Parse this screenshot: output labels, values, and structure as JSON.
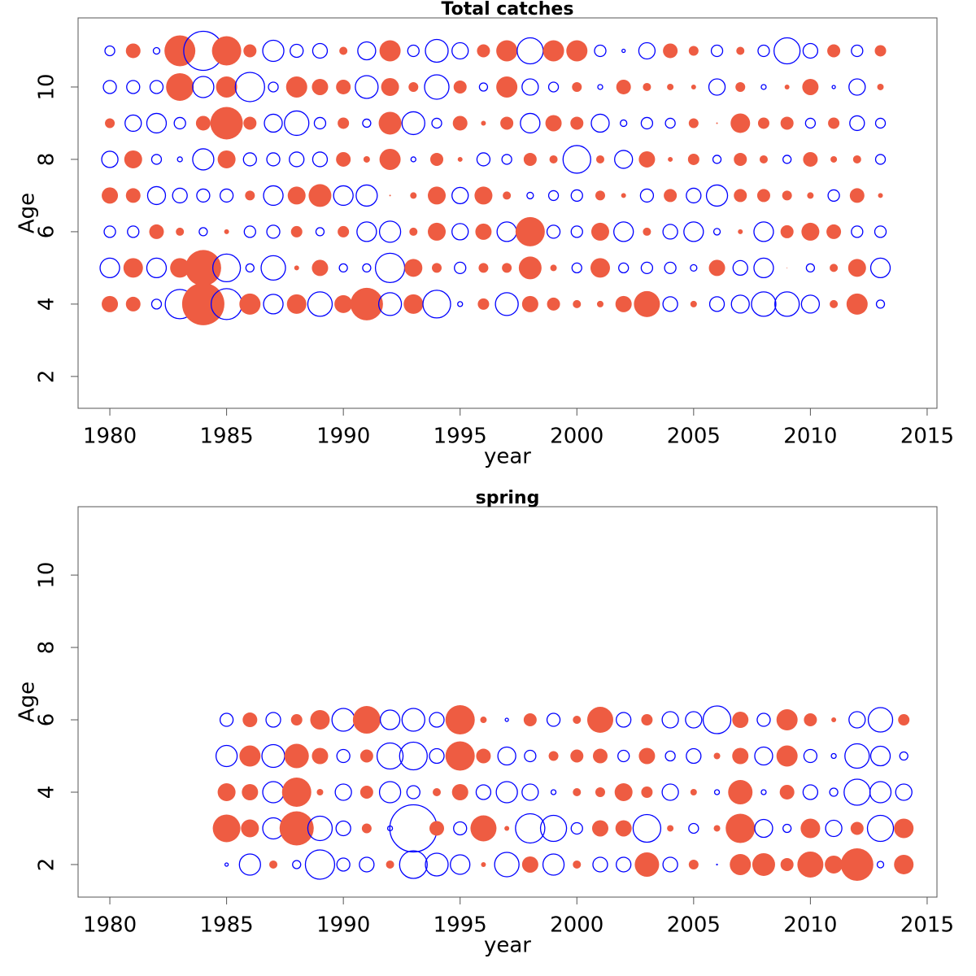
{
  "chart_data": [
    {
      "type": "bubble",
      "title": "Total catches",
      "xlabel": "year",
      "ylabel": "Age",
      "positive_color": "#ee5c42",
      "negative_color": "#0000ff",
      "xlim": [
        1978.64,
        2015.42
      ],
      "ylim": [
        1.12,
        11.91
      ],
      "xticks": [
        1980,
        1985,
        1990,
        1995,
        2000,
        2005,
        2010,
        2015
      ],
      "yticks": [
        2,
        4,
        6,
        8,
        10
      ],
      "x": [
        1980,
        1981,
        1982,
        1983,
        1984,
        1985,
        1986,
        1987,
        1988,
        1989,
        1990,
        1991,
        1992,
        1993,
        1994,
        1995,
        1996,
        1997,
        1998,
        1999,
        2000,
        2001,
        2002,
        2003,
        2004,
        2005,
        2006,
        2007,
        2008,
        2009,
        2010,
        2011,
        2012,
        2013
      ],
      "y": [
        11,
        10,
        9,
        8,
        7,
        6,
        5,
        4
      ],
      "values": [
        [
          -0.6,
          0.9,
          -0.4,
          1.9,
          -2.4,
          1.8,
          0.8,
          -1.3,
          -0.8,
          -0.9,
          0.5,
          -1.1,
          1.3,
          -0.7,
          -1.4,
          -1.0,
          0.8,
          1.3,
          -1.6,
          1.3,
          1.3,
          -0.7,
          -0.2,
          -1.0,
          0.9,
          0.6,
          -0.7,
          0.5,
          -0.7,
          -1.6,
          -0.9,
          0.8,
          -0.7,
          0.7
        ],
        [
          -0.8,
          -0.8,
          -0.8,
          1.7,
          -1.3,
          1.3,
          -1.8,
          -0.6,
          1.3,
          1.0,
          0.9,
          -1.4,
          1.1,
          0.6,
          -1.5,
          0.8,
          -0.5,
          1.3,
          -1.0,
          -0.6,
          0.6,
          -0.3,
          0.9,
          0.5,
          0.4,
          0.3,
          -1.0,
          0.6,
          -0.3,
          0.3,
          1.0,
          -0.2,
          -1.0,
          0.4
        ],
        [
          0.6,
          -1.0,
          -1.2,
          -0.7,
          0.9,
          2.0,
          0.8,
          -1.1,
          -1.5,
          -0.7,
          0.7,
          -0.5,
          1.4,
          -1.4,
          -0.6,
          0.9,
          0.3,
          0.8,
          -1.2,
          1.0,
          0.8,
          -1.1,
          -0.4,
          -0.7,
          -0.6,
          0.6,
          0.1,
          1.2,
          0.7,
          0.8,
          -0.6,
          0.7,
          -0.9,
          -0.6
        ],
        [
          -1.0,
          1.1,
          -0.6,
          -0.3,
          -1.3,
          1.1,
          -0.8,
          -0.8,
          -0.9,
          -0.9,
          0.9,
          0.4,
          1.3,
          -0.3,
          0.8,
          0.3,
          -0.8,
          -0.6,
          0.8,
          0.5,
          -1.7,
          0.5,
          -1.1,
          1.0,
          0.3,
          0.7,
          -0.5,
          0.8,
          0.5,
          -0.5,
          0.9,
          0.4,
          0.5,
          -0.6
        ],
        [
          1.0,
          0.9,
          -1.1,
          -0.9,
          -0.8,
          -0.8,
          0.6,
          -1.2,
          1.1,
          1.4,
          -1.2,
          -1.3,
          0.1,
          0.4,
          1.1,
          -1.0,
          1.1,
          0.5,
          -0.4,
          -0.6,
          -0.7,
          0.6,
          0.3,
          -0.8,
          0.8,
          -0.9,
          -1.3,
          0.8,
          0.8,
          0.6,
          0.4,
          -0.7,
          0.9,
          0.3
        ],
        [
          -0.7,
          -0.7,
          0.9,
          0.5,
          -0.5,
          0.3,
          -0.7,
          -0.8,
          0.7,
          -0.5,
          0.7,
          -1.2,
          -1.3,
          0.5,
          1.1,
          -1.0,
          1.0,
          -1.2,
          1.8,
          -0.8,
          -0.7,
          1.1,
          -1.2,
          0.5,
          -0.9,
          -1.2,
          -0.4,
          0.3,
          -1.2,
          0.8,
          1.1,
          0.9,
          -0.7,
          -0.7
        ],
        [
          -1.2,
          1.2,
          -1.2,
          1.2,
          2.2,
          -1.7,
          -0.5,
          -1.5,
          0.3,
          1.0,
          -0.5,
          -0.5,
          -1.8,
          1.1,
          0.6,
          -0.7,
          0.6,
          0.6,
          1.4,
          0.4,
          -0.6,
          1.2,
          -0.6,
          -0.7,
          -0.7,
          -0.4,
          1.0,
          -0.9,
          -1.2,
          0.05,
          -0.5,
          0.5,
          1.1,
          -1.2
        ],
        [
          1.0,
          0.9,
          -0.6,
          -1.8,
          2.6,
          -1.9,
          1.3,
          -1.2,
          1.2,
          -1.5,
          1.1,
          2.0,
          -1.4,
          1.2,
          -1.7,
          -0.3,
          0.7,
          -1.4,
          1.0,
          0.8,
          0.5,
          0.4,
          1.0,
          1.6,
          -0.9,
          0.4,
          -0.9,
          -1.1,
          -1.5,
          -1.5,
          -1.1,
          0.5,
          1.3,
          -0.5
        ]
      ]
    },
    {
      "type": "bubble",
      "title": "spring",
      "xlabel": "year",
      "ylabel": "Age",
      "positive_color": "#ee5c42",
      "negative_color": "#0000ff",
      "xlim": [
        1978.64,
        2015.42
      ],
      "ylim": [
        1.1,
        11.89
      ],
      "xticks": [
        1980,
        1985,
        1990,
        1995,
        2000,
        2005,
        2010,
        2015
      ],
      "yticks": [
        2,
        4,
        6,
        8,
        10
      ],
      "x": [
        1985,
        1986,
        1987,
        1988,
        1989,
        1990,
        1991,
        1992,
        1993,
        1994,
        1995,
        1996,
        1997,
        1998,
        1999,
        2000,
        2001,
        2002,
        2003,
        2004,
        2005,
        2006,
        2007,
        2008,
        2009,
        2010,
        2011,
        2012,
        2013,
        2014
      ],
      "y": [
        6,
        5,
        4,
        3,
        2
      ],
      "values": [
        [
          -0.8,
          0.9,
          -0.9,
          0.7,
          1.2,
          -1.4,
          1.7,
          -1.2,
          -1.4,
          -0.9,
          1.8,
          0.4,
          -0.2,
          0.8,
          -0.8,
          0.5,
          1.6,
          -0.9,
          0.7,
          -1.0,
          -1.0,
          -1.7,
          1.0,
          -0.8,
          1.3,
          0.8,
          0.3,
          -1.0,
          -1.5,
          0.7
        ],
        [
          -1.3,
          1.3,
          -1.4,
          1.5,
          1.0,
          -0.8,
          0.8,
          -1.6,
          -1.7,
          -0.9,
          1.8,
          0.9,
          -1.1,
          -0.7,
          0.6,
          0.8,
          0.9,
          -0.7,
          1.0,
          -0.6,
          -0.9,
          0.4,
          1.0,
          -1.1,
          1.3,
          -0.8,
          -0.3,
          -1.5,
          -1.2,
          -0.5
        ],
        [
          1.1,
          1.0,
          -1.3,
          1.8,
          0.4,
          -1.0,
          0.8,
          -1.3,
          -0.8,
          0.5,
          1.0,
          -0.9,
          -1.3,
          -1.0,
          -0.3,
          0.5,
          0.6,
          1.1,
          0.7,
          -1.0,
          0.4,
          -0.3,
          1.5,
          -0.3,
          0.9,
          -0.9,
          -0.5,
          -1.6,
          -1.3,
          -1.0
        ],
        [
          1.7,
          1.1,
          -1.3,
          2.1,
          -1.5,
          -0.9,
          0.6,
          -0.3,
          -2.9,
          0.9,
          -0.8,
          1.6,
          0.3,
          -1.8,
          -1.6,
          -0.7,
          1.0,
          1.0,
          -1.7,
          0.4,
          -0.6,
          0.4,
          1.8,
          -1.1,
          -0.5,
          1.2,
          -1.0,
          0.8,
          -1.6,
          1.2
        ],
        [
          -0.2,
          -1.3,
          0.5,
          -0.5,
          -1.8,
          -0.8,
          -0.9,
          0.5,
          -1.7,
          -1.4,
          -1.2,
          0.3,
          -1.5,
          1.0,
          -1.3,
          0.5,
          -0.9,
          -0.9,
          1.5,
          -0.9,
          0.6,
          -0.05,
          1.3,
          1.4,
          0.8,
          1.6,
          1.1,
          2.0,
          -0.4,
          1.2
        ]
      ]
    }
  ]
}
